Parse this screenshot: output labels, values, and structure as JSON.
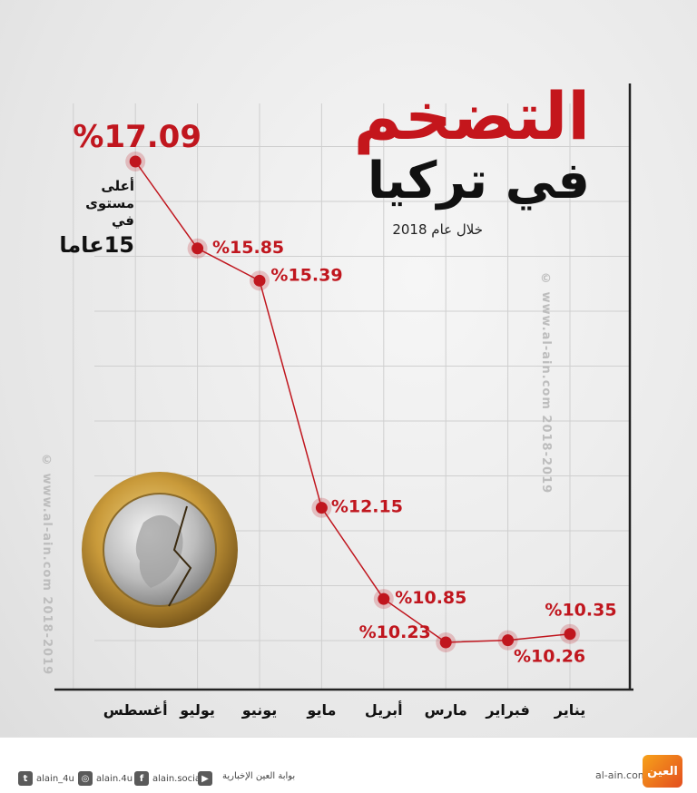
{
  "title": {
    "main": "التضخم",
    "sub": "في تركيا",
    "period": "خلال عام 2018"
  },
  "note": {
    "line1": "أعلى",
    "line2": "مستوى",
    "line3": "في",
    "line4": "15عاما"
  },
  "watermark": "© www.al-ain.com 2018-2019",
  "chart_data": {
    "type": "line",
    "title": "التضخم في تركيا",
    "subtitle": "خلال عام 2018",
    "xlabel": "",
    "ylabel": "",
    "categories": [
      "يناير",
      "فبراير",
      "مارس",
      "أبريل",
      "مايو",
      "يونيو",
      "يوليو",
      "أغسطس"
    ],
    "values": [
      10.35,
      10.26,
      10.23,
      10.85,
      12.15,
      15.39,
      15.85,
      17.09
    ],
    "value_labels": [
      "%10.35",
      "%10.26",
      "%10.23",
      "%10.85",
      "%12.15",
      "%15.39",
      "%15.85",
      "%17.09"
    ],
    "ylim": [
      9.5,
      18.5
    ],
    "x_direction": "right-to-left",
    "grid": true,
    "line_color": "#c0161e",
    "point_color": "#c0161e"
  },
  "footer": {
    "twitter": "alain_4u",
    "instagram": "alain.4u",
    "facebook": "alain.social",
    "youtube_portal": "بوابة العين الإخبارية",
    "site": "al-ain.com",
    "logo_text": "العين"
  }
}
